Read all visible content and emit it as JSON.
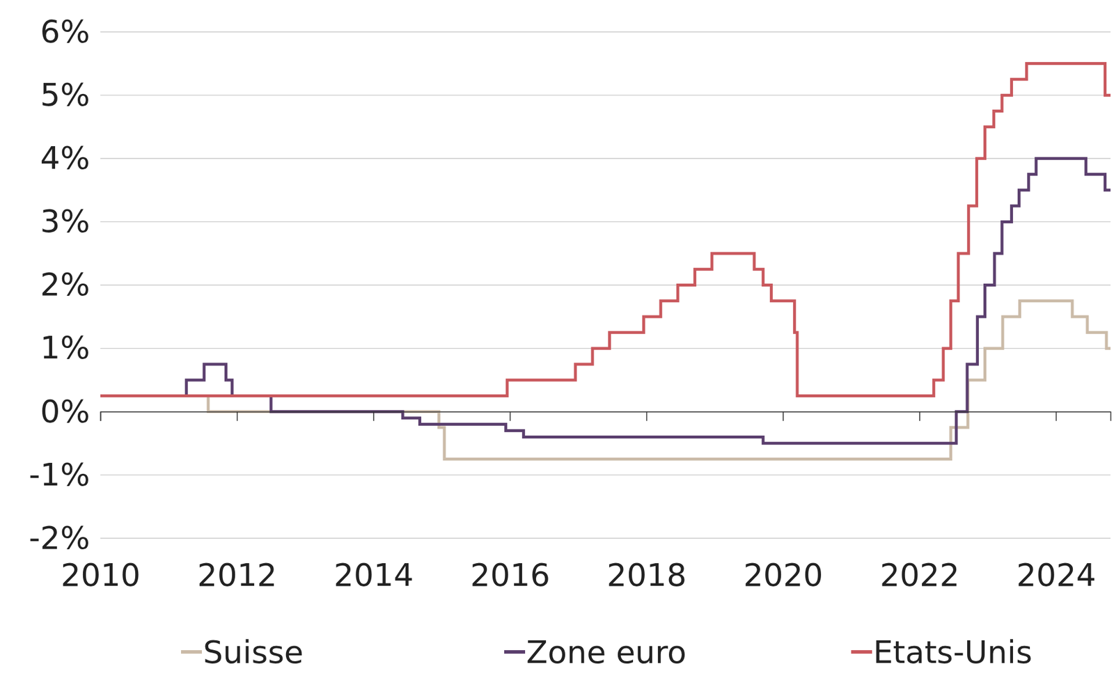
{
  "chart_data": {
    "type": "line",
    "xlim": [
      2010,
      2024.8
    ],
    "xticks": [
      2010,
      2012,
      2014,
      2016,
      2018,
      2020,
      2022,
      2024
    ],
    "ylim": [
      -2,
      6
    ],
    "yticks": [
      {
        "value": -2,
        "label": "-2%"
      },
      {
        "value": -1,
        "label": "-1%"
      },
      {
        "value": 0,
        "label": "0%"
      },
      {
        "value": 1,
        "label": "1%"
      },
      {
        "value": 2,
        "label": "2%"
      },
      {
        "value": 3,
        "label": "3%"
      },
      {
        "value": 4,
        "label": "4%"
      },
      {
        "value": 5,
        "label": "5%"
      },
      {
        "value": 6,
        "label": "6%"
      }
    ],
    "grid": true,
    "legend": "bottom",
    "series": [
      {
        "name": "Suisse",
        "color": "#cbbba8",
        "x": [
          2010,
          2011.58,
          2014.96,
          2015.04,
          2022.46,
          2022.71,
          2022.96,
          2023.22,
          2023.47,
          2024.24,
          2024.46,
          2024.74,
          2024.8
        ],
        "values": [
          0.25,
          0,
          -0.25,
          -0.75,
          -0.25,
          0.5,
          1.0,
          1.5,
          1.75,
          1.5,
          1.25,
          1.0,
          1.0
        ]
      },
      {
        "name": "Zone euro",
        "color": "#5b3f6e",
        "x": [
          2010,
          2011.26,
          2011.52,
          2011.84,
          2011.93,
          2012.5,
          2014.43,
          2014.68,
          2015.94,
          2016.2,
          2019.71,
          2022.54,
          2022.7,
          2022.85,
          2022.96,
          2023.1,
          2023.21,
          2023.35,
          2023.46,
          2023.6,
          2023.71,
          2024.44,
          2024.72,
          2024.8
        ],
        "values": [
          0.25,
          0.5,
          0.75,
          0.5,
          0.25,
          0,
          -0.1,
          -0.2,
          -0.3,
          -0.4,
          -0.5,
          0,
          0.75,
          1.5,
          2.0,
          2.5,
          3.0,
          3.25,
          3.5,
          3.75,
          4.0,
          3.75,
          3.5,
          3.5
        ]
      },
      {
        "name": "Etats-Unis",
        "color": "#c9585d",
        "x": [
          2010,
          2015.96,
          2016.96,
          2017.21,
          2017.46,
          2017.96,
          2018.21,
          2018.46,
          2018.71,
          2018.96,
          2019.58,
          2019.71,
          2019.83,
          2020.17,
          2020.21,
          2022.21,
          2022.35,
          2022.46,
          2022.57,
          2022.72,
          2022.84,
          2022.96,
          2023.09,
          2023.21,
          2023.35,
          2023.57,
          2024.72,
          2024.8
        ],
        "values": [
          0.25,
          0.5,
          0.75,
          1.0,
          1.25,
          1.5,
          1.75,
          2.0,
          2.25,
          2.5,
          2.25,
          2.0,
          1.75,
          1.25,
          0.25,
          0.5,
          1.0,
          1.75,
          2.5,
          3.25,
          4.0,
          4.5,
          4.75,
          5.0,
          5.25,
          5.5,
          5.0,
          5.0
        ]
      }
    ]
  }
}
